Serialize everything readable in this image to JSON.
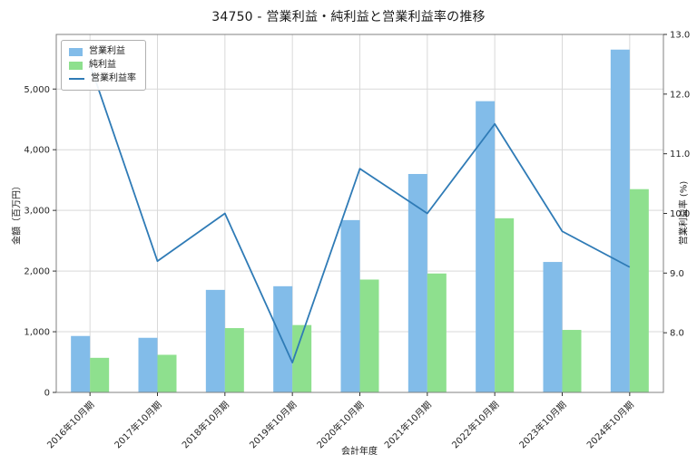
{
  "page": {
    "background": "#ffffff"
  },
  "chart_data": {
    "type": "bar+line",
    "title": "34750 - 営業利益・純利益と営業利益率の推移",
    "xlabel": "会計年度",
    "ylabel_left": "金額（百万円）",
    "ylabel_right": "営業利益率 (%)",
    "categories": [
      "2016年10月期",
      "2017年10月期",
      "2018年10月期",
      "2019年10月期",
      "2020年10月期",
      "2021年10月期",
      "2022年10月期",
      "2023年10月期",
      "2024年10月期"
    ],
    "series": [
      {
        "name": "営業利益",
        "type": "bar",
        "axis": "left",
        "color": "#82bce9",
        "values": [
          930,
          900,
          1690,
          1750,
          2840,
          3600,
          4800,
          2150,
          5650
        ]
      },
      {
        "name": "純利益",
        "type": "bar",
        "axis": "left",
        "color": "#8ee08e",
        "values": [
          570,
          620,
          1060,
          1110,
          1860,
          1960,
          2870,
          1030,
          3350
        ]
      },
      {
        "name": "営業利益率",
        "type": "line",
        "axis": "right",
        "color": "#2f7bb6",
        "values": [
          12.5,
          9.2,
          10.0,
          7.5,
          10.75,
          10.0,
          11.5,
          9.7,
          9.1
        ]
      }
    ],
    "ylim_left": [
      0,
      5900
    ],
    "ylim_right": [
      7.0,
      13.0
    ],
    "yticks_left": {
      "values": [
        0,
        1000,
        2000,
        3000,
        4000,
        5000
      ],
      "labels": [
        "0",
        "1,000",
        "2,000",
        "3,000",
        "4,000",
        "5,000"
      ]
    },
    "yticks_right": {
      "values": [
        8,
        9,
        10,
        11,
        12,
        13
      ],
      "labels": [
        "8.0",
        "9.0",
        "10.0",
        "11.0",
        "12.0",
        "13.0"
      ]
    },
    "grid": true,
    "legend_position": "upper-left",
    "colors": {
      "grid": "#d9d9d9",
      "spine": "#808080",
      "tick_text": "#262626"
    }
  }
}
